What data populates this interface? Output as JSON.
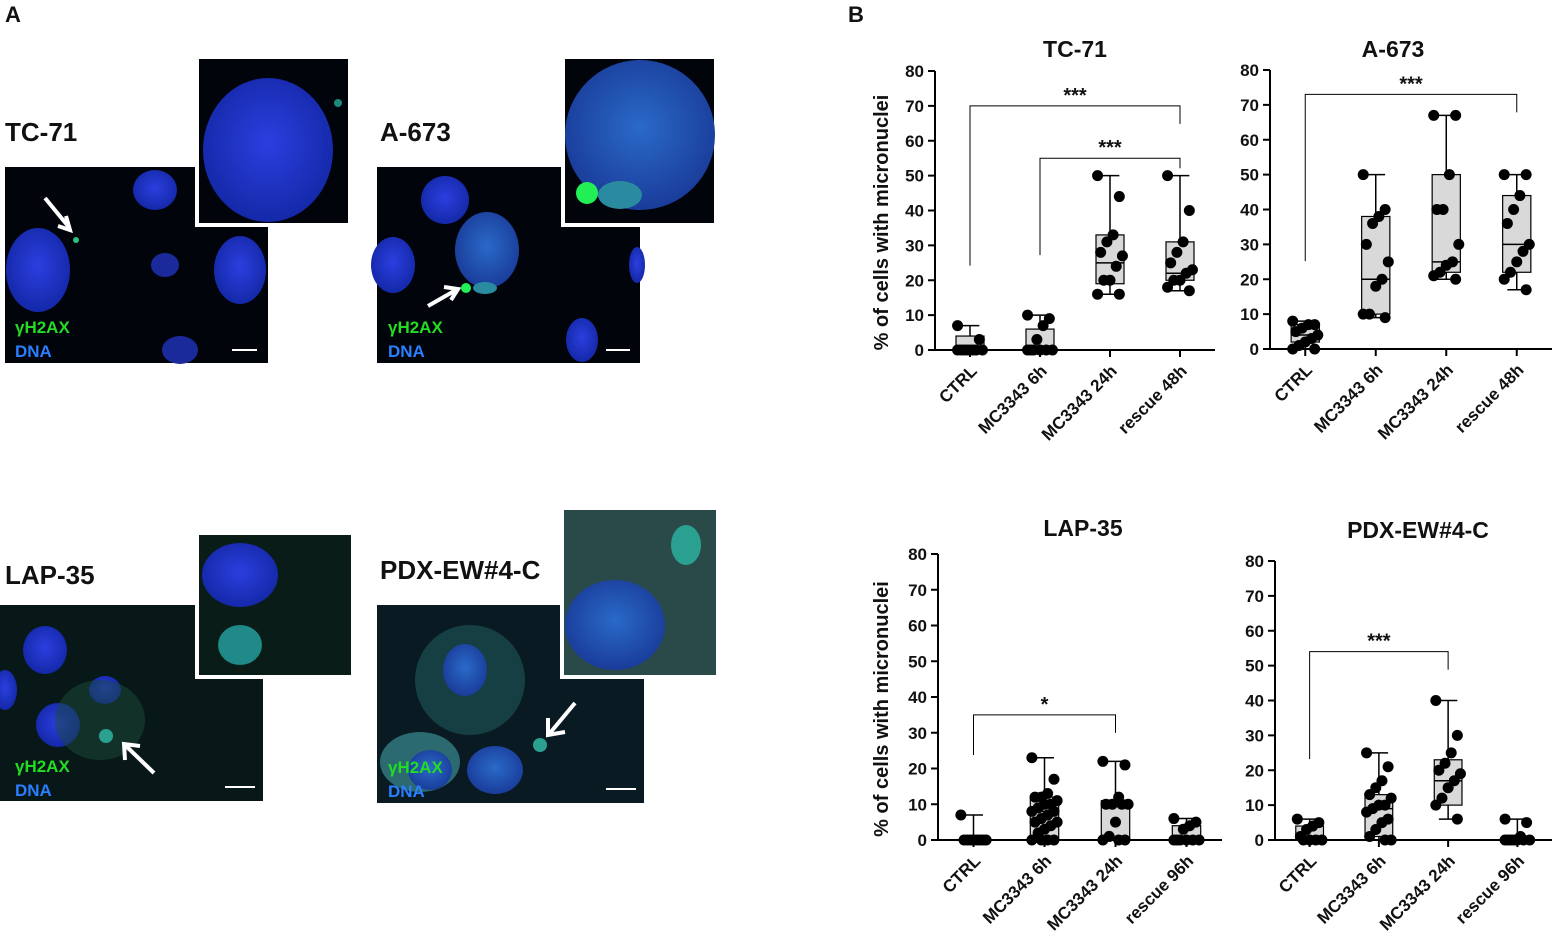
{
  "panel_a": {
    "letter": "A",
    "images": [
      {
        "label": "TC-71",
        "stain": "γH2AX",
        "dna": "DNA"
      },
      {
        "label": "A-673",
        "stain": "γH2AX",
        "dna": "DNA"
      },
      {
        "label": "LAP-35",
        "stain": "γH2AX",
        "dna": "DNA"
      },
      {
        "label": "PDX-EW#4-C",
        "stain": "γH2AX",
        "dna": "DNA"
      }
    ]
  },
  "panel_b": {
    "letter": "B"
  },
  "chart_data": [
    {
      "type": "box",
      "title": "TC-71",
      "y_label": "% of cells with micronuclei",
      "categories": [
        "CTRL",
        "MC3343 6h",
        "MC3343 24h",
        "rescue 48h"
      ],
      "boxes": [
        {
          "min": 0,
          "q1": 0,
          "median": 0,
          "q3": 4,
          "max": 7
        },
        {
          "min": 0,
          "q1": 0,
          "median": 0,
          "q3": 6,
          "max": 10
        },
        {
          "min": 16,
          "q1": 19,
          "median": 25,
          "q3": 33,
          "max": 50
        },
        {
          "min": 17,
          "q1": 20,
          "median": 22,
          "q3": 31,
          "max": 50
        }
      ],
      "points": [
        [
          7,
          3,
          0,
          0,
          0,
          0,
          0,
          0,
          0,
          0
        ],
        [
          10,
          9,
          7,
          3,
          0,
          0,
          0,
          0,
          0,
          0
        ],
        [
          50,
          44,
          33,
          31,
          28,
          27,
          24,
          20,
          20,
          16,
          16
        ],
        [
          50,
          40,
          31,
          28,
          25,
          23,
          22,
          20,
          20,
          18,
          17
        ]
      ],
      "annotations": [
        {
          "from": 0,
          "to": 3,
          "y": 70,
          "label": "***"
        },
        {
          "from": 1,
          "to": 3,
          "y": 55,
          "label": "***"
        }
      ],
      "ylim": [
        0,
        80
      ],
      "yticks": [
        0,
        10,
        20,
        30,
        40,
        50,
        60,
        70,
        80
      ],
      "box_color": "#d9d9d9",
      "point_color": "#000000"
    },
    {
      "type": "box",
      "title": "A-673",
      "categories": [
        "CTRL",
        "MC3343 6h",
        "MC3343 24h",
        "rescue 48h"
      ],
      "boxes": [
        {
          "min": 0,
          "q1": 2,
          "median": 4,
          "q3": 7,
          "max": 8
        },
        {
          "min": 9,
          "q1": 10,
          "median": 20,
          "q3": 38,
          "max": 50
        },
        {
          "min": 20,
          "q1": 22,
          "median": 25,
          "q3": 50,
          "max": 67
        },
        {
          "min": 17,
          "q1": 22,
          "median": 30,
          "q3": 44,
          "max": 50
        }
      ],
      "points": [
        [
          8,
          7,
          7,
          6,
          5,
          4,
          3,
          2,
          1,
          0,
          0
        ],
        [
          50,
          40,
          38,
          36,
          30,
          25,
          20,
          18,
          10,
          10,
          9
        ],
        [
          67,
          67,
          50,
          40,
          40,
          30,
          25,
          24,
          22,
          21,
          20
        ],
        [
          50,
          50,
          44,
          40,
          36,
          30,
          28,
          25,
          22,
          20,
          17
        ]
      ],
      "annotations": [
        {
          "from": 0,
          "to": 3,
          "y": 73,
          "label": "***"
        }
      ],
      "ylim": [
        0,
        80
      ],
      "yticks": [
        0,
        10,
        20,
        30,
        40,
        50,
        60,
        70,
        80
      ],
      "box_color": "#d9d9d9",
      "point_color": "#000000"
    },
    {
      "type": "box",
      "title": "LAP-35",
      "y_label": "% of cells with micronuclei",
      "categories": [
        "CTRL",
        "MC3343 6h",
        "MC3343 24h",
        "rescue 96h"
      ],
      "boxes": [
        {
          "min": 0,
          "q1": 0,
          "median": 0,
          "q3": 0,
          "max": 7
        },
        {
          "min": 0,
          "q1": 0,
          "median": 8,
          "q3": 12,
          "max": 23
        },
        {
          "min": 0,
          "q1": 0,
          "median": 10,
          "q3": 11,
          "max": 22
        },
        {
          "min": 0,
          "q1": 0,
          "median": 0,
          "q3": 4,
          "max": 6
        }
      ],
      "points": [
        [
          7,
          0,
          0,
          0,
          0,
          0,
          0,
          0,
          0
        ],
        [
          23,
          17,
          13,
          12,
          12,
          11,
          10,
          10,
          9,
          8,
          8,
          7,
          6,
          5,
          5,
          4,
          3,
          2,
          0,
          0,
          0,
          0
        ],
        [
          22,
          21,
          12,
          10,
          10,
          10,
          10,
          5,
          1,
          0,
          0,
          0
        ],
        [
          6,
          5,
          4,
          3,
          0,
          0,
          0,
          0,
          0,
          0
        ]
      ],
      "annotations": [
        {
          "from": 0,
          "to": 2,
          "y": 35,
          "label": "*"
        }
      ],
      "ylim": [
        0,
        80
      ],
      "yticks": [
        0,
        10,
        20,
        30,
        40,
        50,
        60,
        70,
        80
      ],
      "box_color": "#d9d9d9",
      "point_color": "#000000"
    },
    {
      "type": "box",
      "title": "PDX-EW#4-C",
      "categories": [
        "CTRL",
        "MC3343 6h",
        "MC3343 24h",
        "rescue 96h"
      ],
      "boxes": [
        {
          "min": 0,
          "q1": 0,
          "median": 0,
          "q3": 4,
          "max": 6
        },
        {
          "min": 0,
          "q1": 1,
          "median": 9,
          "q3": 13,
          "max": 25
        },
        {
          "min": 6,
          "q1": 10,
          "median": 17,
          "q3": 23,
          "max": 40
        },
        {
          "min": 0,
          "q1": 0,
          "median": 0,
          "q3": 1,
          "max": 6
        }
      ],
      "points": [
        [
          6,
          5,
          4,
          3,
          1,
          0,
          0,
          0,
          0
        ],
        [
          25,
          21,
          17,
          15,
          13,
          12,
          10,
          10,
          9,
          8,
          6,
          5,
          3,
          1,
          0,
          0
        ],
        [
          40,
          30,
          25,
          22,
          20,
          19,
          17,
          15,
          12,
          10,
          6
        ],
        [
          6,
          5,
          1,
          0,
          0,
          0,
          0,
          0,
          0,
          0
        ]
      ],
      "annotations": [
        {
          "from": 0,
          "to": 2,
          "y": 54,
          "label": "***"
        }
      ],
      "ylim": [
        0,
        80
      ],
      "yticks": [
        0,
        10,
        20,
        30,
        40,
        50,
        60,
        70,
        80
      ],
      "box_color": "#d9d9d9",
      "point_color": "#000000"
    }
  ]
}
